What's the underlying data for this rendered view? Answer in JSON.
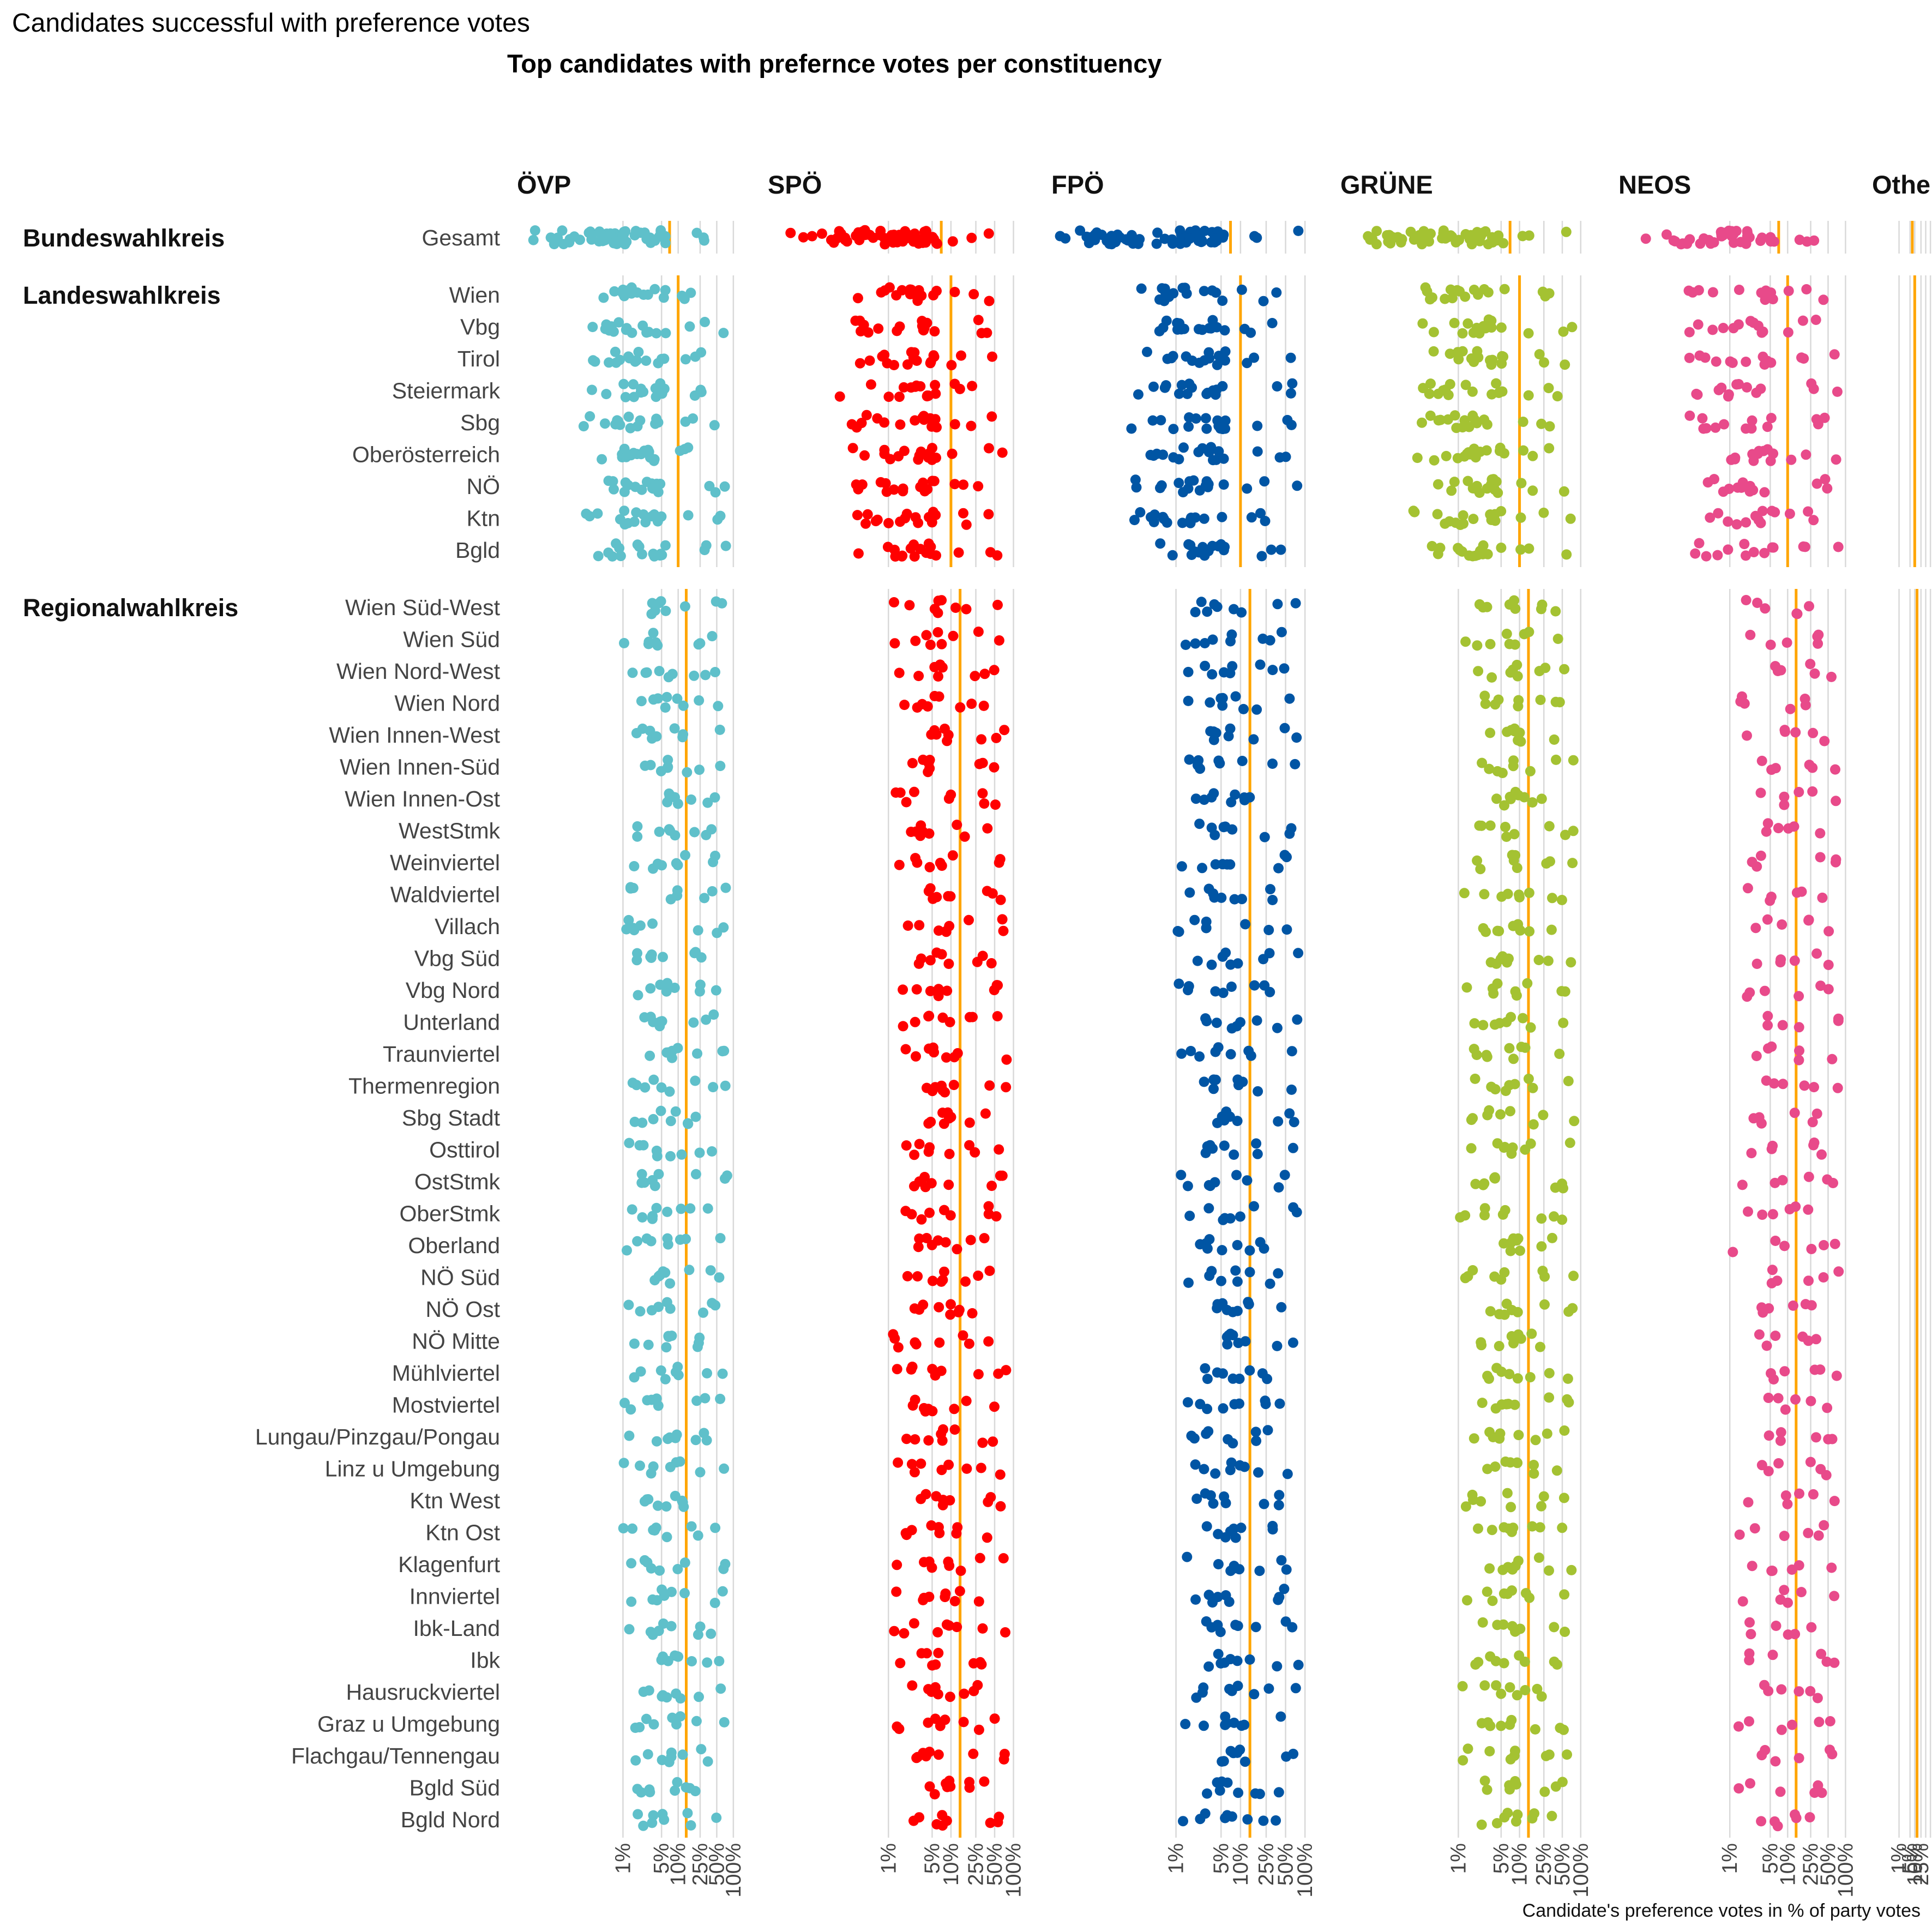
{
  "title": "Candidates successful with preference votes",
  "chart_data": {
    "type": "scatter",
    "subtitle": "Top candidates with prefernce votes per constituency",
    "xlabel": "Candidate's preference votes in % of party votes",
    "x_scale": "log",
    "x_ticks": [
      1,
      5,
      10,
      25,
      50,
      100
    ],
    "x_tick_labels": [
      "1%",
      "5%",
      "10%",
      "25%",
      "50%",
      "100%"
    ],
    "threshold_lines": {
      "Bundeswahlkreis": 7,
      "Landeswahlkreis": 10,
      "Regionalwahlkreis": 14
    },
    "groups": [
      {
        "name": "Bundeswahlkreis",
        "rows": [
          "Gesamt"
        ]
      },
      {
        "name": "Landeswahlkreis",
        "rows": [
          "Wien",
          "Vbg",
          "Tirol",
          "Steiermark",
          "Sbg",
          "Oberösterreich",
          "NÖ",
          "Ktn",
          "Bgld"
        ]
      },
      {
        "name": "Regionalwahlkreis",
        "rows": [
          "Wien Süd-West",
          "Wien Süd",
          "Wien Nord-West",
          "Wien Nord",
          "Wien Innen-West",
          "Wien Innen-Süd",
          "Wien Innen-Ost",
          "WestStmk",
          "Weinviertel",
          "Waldviertel",
          "Villach",
          "Vbg Süd",
          "Vbg Nord",
          "Unterland",
          "Traunviertel",
          "Thermenregion",
          "Sbg Stadt",
          "Osttirol",
          "OstStmk",
          "OberStmk",
          "Oberland",
          "NÖ Süd",
          "NÖ Ost",
          "NÖ Mitte",
          "Mühlviertel",
          "Mostviertel",
          "Lungau/Pinzgau/Pongau",
          "Linz u Umgebung",
          "Ktn West",
          "Ktn Ost",
          "Klagenfurt",
          "Innviertel",
          "Ibk-Land",
          "Ibk",
          "Hausruckviertel",
          "Graz u Umgebung",
          "Flachgau/Tennengau",
          "Bgld Süd",
          "Bgld Nord"
        ]
      }
    ],
    "series": [
      {
        "name": "ÖVP",
        "color": "#5fc0ca",
        "points_per_row": {
          "Bundeswahlkreis": 60,
          "Landeswahlkreis": 18,
          "Regionalwahlkreis": 9
        },
        "x_range_pct": {
          "Bundeswahlkreis": [
            0.015,
            6
          ],
          "Landeswahlkreis": [
            0.15,
            6
          ],
          "Regionalwahlkreis": [
            1,
            10
          ]
        }
      },
      {
        "name": "SPÖ",
        "color": "#ff0000",
        "points_per_row": {
          "Bundeswahlkreis": 60,
          "Landeswahlkreis": 18,
          "Regionalwahlkreis": 9
        },
        "x_range_pct": {
          "Bundeswahlkreis": [
            0.015,
            6
          ],
          "Landeswahlkreis": [
            0.15,
            6
          ],
          "Regionalwahlkreis": [
            1,
            10
          ]
        }
      },
      {
        "name": "FPÖ",
        "color": "#0055a4",
        "points_per_row": {
          "Bundeswahlkreis": 60,
          "Landeswahlkreis": 18,
          "Regionalwahlkreis": 9
        },
        "x_range_pct": {
          "Bundeswahlkreis": [
            0.015,
            6
          ],
          "Landeswahlkreis": [
            0.15,
            6
          ],
          "Regionalwahlkreis": [
            1,
            10
          ]
        }
      },
      {
        "name": "GRÜNE",
        "color": "#a4c232",
        "points_per_row": {
          "Bundeswahlkreis": 60,
          "Landeswahlkreis": 18,
          "Regionalwahlkreis": 9
        },
        "x_range_pct": {
          "Bundeswahlkreis": [
            0.015,
            6
          ],
          "Landeswahlkreis": [
            0.15,
            6
          ],
          "Regionalwahlkreis": [
            1,
            10
          ]
        }
      },
      {
        "name": "NEOS",
        "color": "#e84a8a",
        "points_per_row": {
          "Bundeswahlkreis": 40,
          "Landeswahlkreis": 14,
          "Regionalwahlkreis": 6
        },
        "x_range_pct": {
          "Bundeswahlkreis": [
            0.015,
            6
          ],
          "Landeswahlkreis": [
            0.15,
            6
          ],
          "Regionalwahlkreis": [
            1,
            10
          ]
        }
      },
      {
        "name": "Othe",
        "color": "#999999",
        "points_per_row": {
          "Bundeswahlkreis": 0,
          "Landeswahlkreis": 0,
          "Regionalwahlkreis": 0
        },
        "x_range_pct": {
          "Bundeswahlkreis": [
            0,
            0
          ],
          "Landeswahlkreis": [
            0,
            0
          ],
          "Regionalwahlkreis": [
            0,
            0
          ]
        }
      }
    ]
  }
}
